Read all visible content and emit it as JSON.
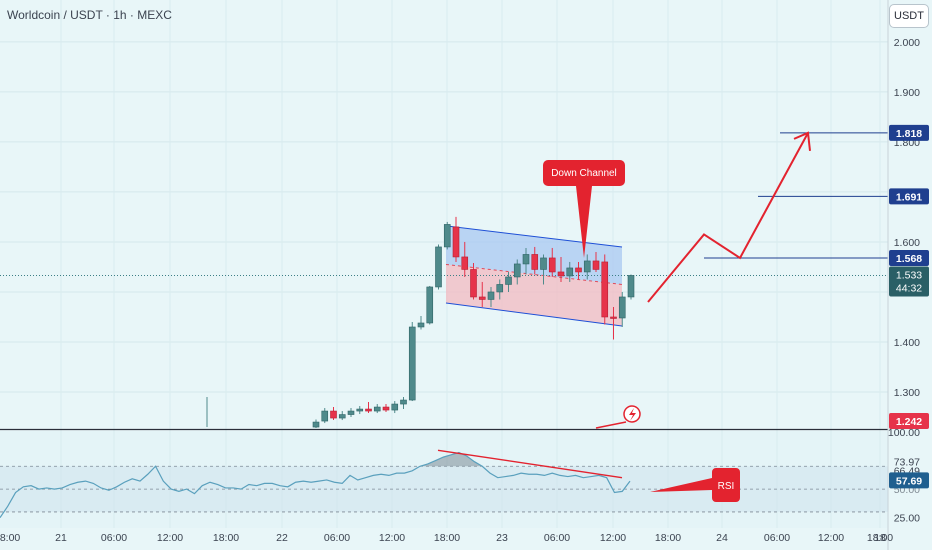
{
  "header": {
    "title": "Worldcoin / USDT · 1h · MEXC",
    "currency_button": "USDT"
  },
  "colors": {
    "background": "#e8f6f8",
    "bull": "#4f8a8b",
    "bear": "#e6334a",
    "channel": "#1e4fd6",
    "target_line": "#1f3f8f",
    "arrow": "#e3232f",
    "rsi_line": "#5aa0bd"
  },
  "icons": [
    "lightning-icon"
  ],
  "chart_data": [
    {
      "type": "candlestick",
      "title": "Worldcoin / USDT · 1h · MEXC",
      "ylim": [
        1.21,
        2.06
      ],
      "y_ticks": [
        "2.000",
        "1.900",
        "1.800",
        "1.700",
        "1.600",
        "1.500",
        "1.400",
        "1.300"
      ],
      "x_ticks": [
        "18:00",
        "21",
        "06:00",
        "12:00",
        "18:00",
        "22",
        "06:00",
        "12:00",
        "18:00",
        "23",
        "06:00",
        "12:00",
        "18:00",
        "24",
        "06:00",
        "12:00",
        "18:00",
        "18"
      ],
      "candles": [
        {
          "o": 1.23,
          "h": 1.245,
          "l": 1.22,
          "c": 1.24
        },
        {
          "o": 1.242,
          "h": 1.268,
          "l": 1.238,
          "c": 1.262
        },
        {
          "o": 1.262,
          "h": 1.27,
          "l": 1.244,
          "c": 1.248
        },
        {
          "o": 1.248,
          "h": 1.262,
          "l": 1.244,
          "c": 1.255
        },
        {
          "o": 1.255,
          "h": 1.268,
          "l": 1.25,
          "c": 1.262
        },
        {
          "o": 1.262,
          "h": 1.272,
          "l": 1.256,
          "c": 1.266
        },
        {
          "o": 1.266,
          "h": 1.28,
          "l": 1.258,
          "c": 1.262
        },
        {
          "o": 1.262,
          "h": 1.276,
          "l": 1.258,
          "c": 1.27
        },
        {
          "o": 1.27,
          "h": 1.276,
          "l": 1.26,
          "c": 1.264
        },
        {
          "o": 1.264,
          "h": 1.282,
          "l": 1.258,
          "c": 1.276
        },
        {
          "o": 1.276,
          "h": 1.29,
          "l": 1.266,
          "c": 1.284
        },
        {
          "o": 1.284,
          "h": 1.44,
          "l": 1.282,
          "c": 1.43
        },
        {
          "o": 1.43,
          "h": 1.452,
          "l": 1.425,
          "c": 1.438
        },
        {
          "o": 1.438,
          "h": 1.512,
          "l": 1.435,
          "c": 1.51
        },
        {
          "o": 1.51,
          "h": 1.595,
          "l": 1.505,
          "c": 1.59
        },
        {
          "o": 1.59,
          "h": 1.64,
          "l": 1.585,
          "c": 1.635
        },
        {
          "o": 1.63,
          "h": 1.65,
          "l": 1.56,
          "c": 1.57
        },
        {
          "o": 1.57,
          "h": 1.6,
          "l": 1.53,
          "c": 1.545
        },
        {
          "o": 1.545,
          "h": 1.558,
          "l": 1.485,
          "c": 1.49
        },
        {
          "o": 1.49,
          "h": 1.52,
          "l": 1.47,
          "c": 1.485
        },
        {
          "o": 1.485,
          "h": 1.51,
          "l": 1.47,
          "c": 1.5
        },
        {
          "o": 1.5,
          "h": 1.525,
          "l": 1.485,
          "c": 1.515
        },
        {
          "o": 1.515,
          "h": 1.54,
          "l": 1.5,
          "c": 1.53
        },
        {
          "o": 1.53,
          "h": 1.565,
          "l": 1.515,
          "c": 1.556
        },
        {
          "o": 1.556,
          "h": 1.588,
          "l": 1.535,
          "c": 1.575
        },
        {
          "o": 1.575,
          "h": 1.59,
          "l": 1.535,
          "c": 1.545
        },
        {
          "o": 1.545,
          "h": 1.575,
          "l": 1.515,
          "c": 1.568
        },
        {
          "o": 1.568,
          "h": 1.588,
          "l": 1.53,
          "c": 1.54
        },
        {
          "o": 1.54,
          "h": 1.57,
          "l": 1.52,
          "c": 1.532
        },
        {
          "o": 1.532,
          "h": 1.56,
          "l": 1.52,
          "c": 1.548
        },
        {
          "o": 1.548,
          "h": 1.56,
          "l": 1.525,
          "c": 1.54
        },
        {
          "o": 1.54,
          "h": 1.575,
          "l": 1.525,
          "c": 1.562
        },
        {
          "o": 1.562,
          "h": 1.58,
          "l": 1.54,
          "c": 1.545
        },
        {
          "o": 1.56,
          "h": 1.575,
          "l": 1.435,
          "c": 1.45
        },
        {
          "o": 1.45,
          "h": 1.47,
          "l": 1.405,
          "c": 1.448
        },
        {
          "o": 1.448,
          "h": 1.5,
          "l": 1.43,
          "c": 1.49
        },
        {
          "o": 1.49,
          "h": 1.535,
          "l": 1.485,
          "c": 1.533
        }
      ],
      "candle_start_time": "22 05:00",
      "extra_candle": {
        "time": "21 15:00",
        "h": 1.29,
        "l": 1.23
      },
      "down_channel": {
        "label": "Down Channel",
        "upper": [
          [
            1.632,
            1.59
          ]
        ],
        "mid": [
          [
            1.555,
            1.515
          ]
        ],
        "lower": [
          [
            1.478,
            1.432
          ]
        ]
      },
      "price_levels": [
        {
          "label": "1.818",
          "value": 1.818
        },
        {
          "label": "1.691",
          "value": 1.691
        },
        {
          "label": "1.568",
          "value": 1.568
        }
      ],
      "current_price": {
        "price": "1.533",
        "countdown": "44:32",
        "value": 1.533
      },
      "bottom_price_label": "1.242",
      "projection_path": [
        1.48,
        1.615,
        1.568,
        1.818
      ]
    },
    {
      "type": "line",
      "title": "RSI",
      "label": "RSI",
      "ylim": [
        20,
        100
      ],
      "y_ticks": [
        {
          "label": "100.00",
          "value": 100
        },
        {
          "label": "73.97",
          "value": 73.97
        },
        {
          "label": "66.49",
          "value": 66.49
        },
        {
          "label": "50.00",
          "value": 50
        },
        {
          "label": "25.00",
          "value": 25
        }
      ],
      "levels": [
        70,
        50,
        30
      ],
      "current_value": "57.69",
      "values": [
        25,
        35,
        47,
        52,
        53,
        50,
        51,
        50,
        51,
        54,
        56,
        57,
        55,
        51,
        49,
        52,
        56,
        59,
        57,
        63,
        70,
        57,
        50,
        48,
        50,
        46,
        53,
        56,
        54,
        51,
        51,
        50,
        54,
        53,
        55,
        55,
        53,
        52,
        56,
        57,
        56,
        57,
        58,
        56,
        55,
        62,
        58,
        60,
        62,
        63,
        62,
        64,
        64,
        66,
        70,
        72,
        75,
        78,
        80,
        82,
        79,
        74,
        70,
        64,
        60,
        61,
        62,
        64,
        63,
        63,
        62,
        64,
        62,
        61,
        62,
        60,
        61,
        62,
        60,
        47,
        48,
        57
      ]
    }
  ]
}
